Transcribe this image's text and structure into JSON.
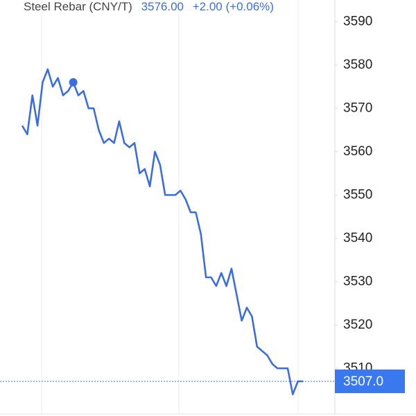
{
  "chart_data": {
    "type": "line",
    "title": "Steel Rebar (CNY/T)",
    "price": "3576.00",
    "change": "+2.00 (+0.06%)",
    "series": [
      {
        "name": "Steel Rebar",
        "color": "#3a6ee0",
        "values": [
          3566,
          3564,
          3573,
          3566,
          3576,
          3579,
          3575,
          3577,
          3573,
          3574,
          3576,
          3573,
          3574,
          3570,
          3570,
          3565,
          3562,
          3563,
          3562,
          3567,
          3562,
          3561,
          3562,
          3555,
          3556,
          3552,
          3560,
          3557,
          3550,
          3550,
          3550,
          3551,
          3549,
          3546,
          3546,
          3541,
          3531,
          3531,
          3529,
          3532,
          3529,
          3533,
          3527,
          3521,
          3524,
          3522,
          3515,
          3514,
          3513,
          3511,
          3510,
          3510,
          3510,
          3504,
          3507,
          3507
        ]
      }
    ],
    "highlight_index": 10,
    "current_price": {
      "value": 3507,
      "label": "3507.0"
    },
    "ylim": [
      3499,
      3595
    ],
    "yticks": [
      3510,
      3520,
      3530,
      3540,
      3550,
      3560,
      3570,
      3580,
      3590
    ]
  }
}
